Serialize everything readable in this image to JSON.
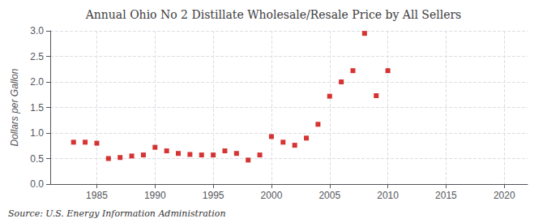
{
  "chart_data": {
    "type": "scatter",
    "title": "Annual Ohio No 2 Distillate Wholesale/Resale Price by All Sellers",
    "ylabel": "Dollars per Gallon",
    "source": "Source: U.S. Energy Information Administration",
    "x": [
      1983,
      1984,
      1985,
      1986,
      1987,
      1988,
      1989,
      1990,
      1991,
      1992,
      1993,
      1994,
      1995,
      1996,
      1997,
      1998,
      1999,
      2000,
      2001,
      2002,
      2003,
      2004,
      2005,
      2006,
      2007,
      2008,
      2009,
      2010
    ],
    "values": [
      0.82,
      0.82,
      0.8,
      0.5,
      0.52,
      0.55,
      0.57,
      0.72,
      0.65,
      0.6,
      0.58,
      0.57,
      0.57,
      0.65,
      0.6,
      0.47,
      0.57,
      0.93,
      0.82,
      0.76,
      0.9,
      1.17,
      1.72,
      2.0,
      2.22,
      2.95,
      1.73,
      2.22
    ],
    "color": "#cc0000",
    "marker": "square",
    "xlim": [
      1981,
      2022
    ],
    "xticks": [
      1985,
      1990,
      1995,
      2000,
      2005,
      2010,
      2015,
      2020
    ],
    "ylim": [
      0.0,
      3.0
    ],
    "yticks": [
      {
        "value": 0,
        "label": "0.0"
      },
      0.5,
      {
        "value": 1,
        "label": "1.0"
      },
      1.5,
      {
        "value": 2,
        "label": "2.0"
      },
      2.5,
      {
        "value": 3,
        "label": "3.0"
      }
    ],
    "grid": true
  }
}
